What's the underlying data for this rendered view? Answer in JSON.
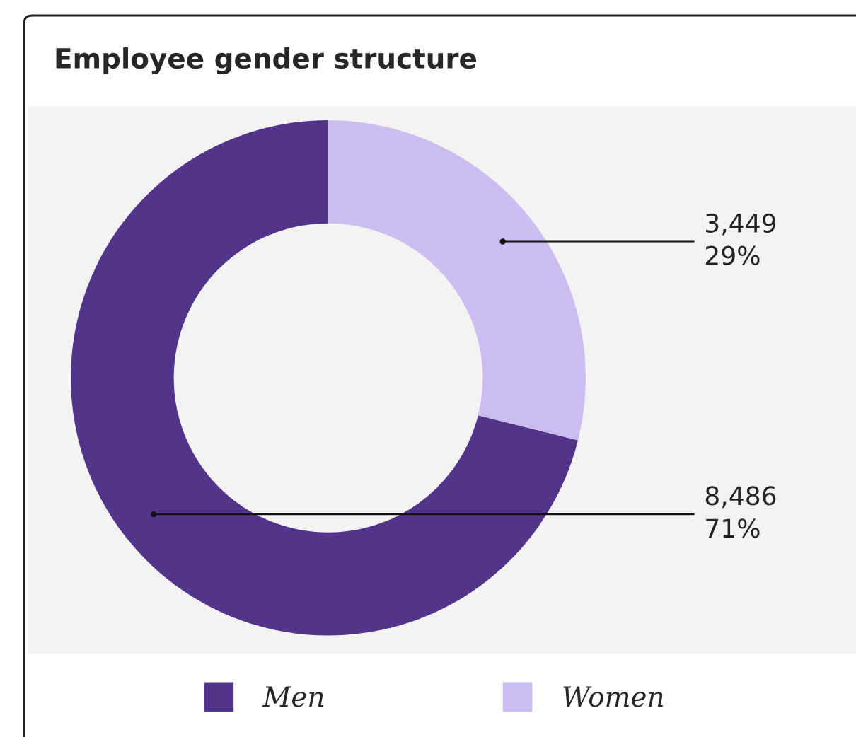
{
  "chart_data": {
    "type": "donut",
    "title": "Employee gender structure",
    "categories": [
      "Men",
      "Women"
    ],
    "values": [
      8486,
      3449
    ],
    "colors": [
      "#52348b",
      "#cbbdf0"
    ],
    "value_labels": [
      "8,486\n71%",
      "3,449\n29%"
    ],
    "legend": "bottom"
  }
}
